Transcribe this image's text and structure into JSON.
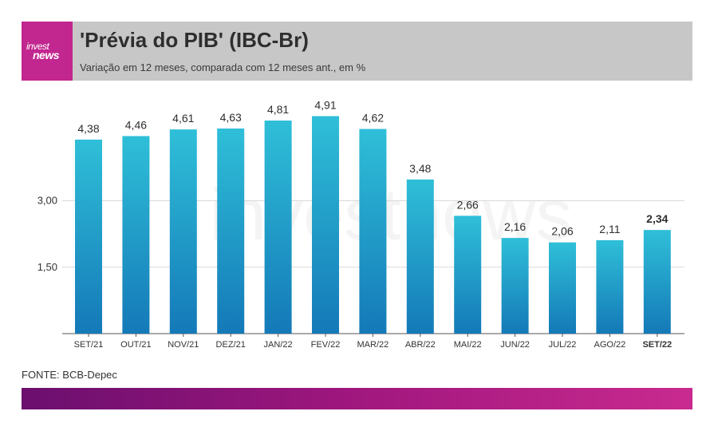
{
  "header": {
    "logo_line1": "invest",
    "logo_line2": "news",
    "title": "'Prévia do PIB' (IBC-Br)",
    "subtitle": "Variação em 12 meses, comparada com 12 meses ant., em %"
  },
  "watermark": "investnews",
  "source": "FONTE: BCB-Depec",
  "colors": {
    "header_bg": "#c7c7c7",
    "logo_bg": "#c2268f",
    "bar_top": "#2fbfd8",
    "bar_bottom": "#1479b8",
    "footer_start": "#6b0f6e",
    "footer_end": "#c92a8f"
  },
  "chart_data": {
    "type": "bar",
    "categories": [
      "SET/21",
      "OUT/21",
      "NOV/21",
      "DEZ/21",
      "JAN/22",
      "FEV/22",
      "MAR/22",
      "ABR/22",
      "MAI/22",
      "JUN/22",
      "JUL/22",
      "AGO/22",
      "SET/22"
    ],
    "value_labels": [
      "4,38",
      "4,46",
      "4,61",
      "4,63",
      "4,81",
      "4,91",
      "4,62",
      "3,48",
      "2,66",
      "2,16",
      "2,06",
      "2,11",
      "2,34"
    ],
    "values": [
      4.38,
      4.46,
      4.61,
      4.63,
      4.81,
      4.91,
      4.62,
      3.48,
      2.66,
      2.16,
      2.06,
      2.11,
      2.34
    ],
    "highlight_index": 12,
    "yticks": [
      1.5,
      3.0
    ],
    "ytick_labels": [
      "1,50",
      "3,00"
    ],
    "ylim": [
      0,
      5.5
    ],
    "grid": true
  }
}
